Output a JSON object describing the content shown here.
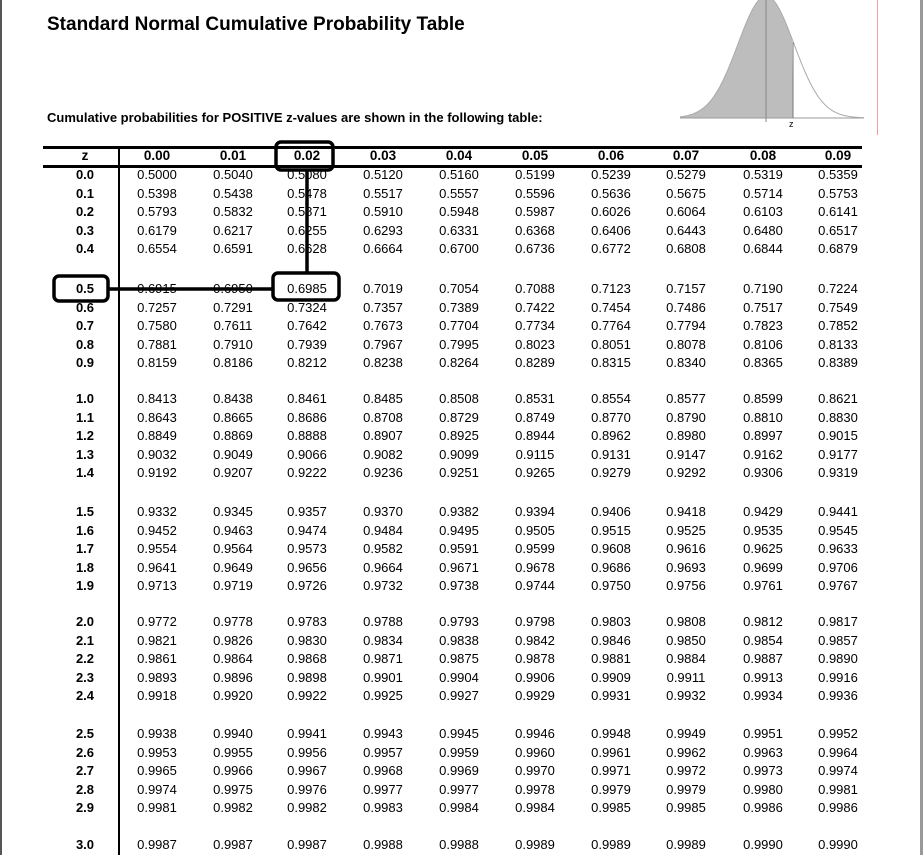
{
  "title": "Standard Normal Cumulative Probability Table",
  "subtitle": "Cumulative probabilities for POSITIVE z-values are shown in the following table:",
  "figure": {
    "axis_label": "z"
  },
  "table": {
    "headers": [
      "z",
      "0.00",
      "0.01",
      "0.02",
      "0.03",
      "0.04",
      "0.05",
      "0.06",
      "0.07",
      "0.08",
      "0.09"
    ],
    "groups": [
      [
        [
          "0.0",
          "0.5000",
          "0.5040",
          "0.5080",
          "0.5120",
          "0.5160",
          "0.5199",
          "0.5239",
          "0.5279",
          "0.5319",
          "0.5359"
        ],
        [
          "0.1",
          "0.5398",
          "0.5438",
          "0.5478",
          "0.5517",
          "0.5557",
          "0.5596",
          "0.5636",
          "0.5675",
          "0.5714",
          "0.5753"
        ],
        [
          "0.2",
          "0.5793",
          "0.5832",
          "0.5871",
          "0.5910",
          "0.5948",
          "0.5987",
          "0.6026",
          "0.6064",
          "0.6103",
          "0.6141"
        ],
        [
          "0.3",
          "0.6179",
          "0.6217",
          "0.6255",
          "0.6293",
          "0.6331",
          "0.6368",
          "0.6406",
          "0.6443",
          "0.6480",
          "0.6517"
        ],
        [
          "0.4",
          "0.6554",
          "0.6591",
          "0.6628",
          "0.6664",
          "0.6700",
          "0.6736",
          "0.6772",
          "0.6808",
          "0.6844",
          "0.6879"
        ]
      ],
      [
        [
          "0.5",
          "0.6915",
          "0.6950",
          "0.6985",
          "0.7019",
          "0.7054",
          "0.7088",
          "0.7123",
          "0.7157",
          "0.7190",
          "0.7224"
        ],
        [
          "0.6",
          "0.7257",
          "0.7291",
          "0.7324",
          "0.7357",
          "0.7389",
          "0.7422",
          "0.7454",
          "0.7486",
          "0.7517",
          "0.7549"
        ],
        [
          "0.7",
          "0.7580",
          "0.7611",
          "0.7642",
          "0.7673",
          "0.7704",
          "0.7734",
          "0.7764",
          "0.7794",
          "0.7823",
          "0.7852"
        ],
        [
          "0.8",
          "0.7881",
          "0.7910",
          "0.7939",
          "0.7967",
          "0.7995",
          "0.8023",
          "0.8051",
          "0.8078",
          "0.8106",
          "0.8133"
        ],
        [
          "0.9",
          "0.8159",
          "0.8186",
          "0.8212",
          "0.8238",
          "0.8264",
          "0.8289",
          "0.8315",
          "0.8340",
          "0.8365",
          "0.8389"
        ]
      ],
      [
        [
          "1.0",
          "0.8413",
          "0.8438",
          "0.8461",
          "0.8485",
          "0.8508",
          "0.8531",
          "0.8554",
          "0.8577",
          "0.8599",
          "0.8621"
        ],
        [
          "1.1",
          "0.8643",
          "0.8665",
          "0.8686",
          "0.8708",
          "0.8729",
          "0.8749",
          "0.8770",
          "0.8790",
          "0.8810",
          "0.8830"
        ],
        [
          "1.2",
          "0.8849",
          "0.8869",
          "0.8888",
          "0.8907",
          "0.8925",
          "0.8944",
          "0.8962",
          "0.8980",
          "0.8997",
          "0.9015"
        ],
        [
          "1.3",
          "0.9032",
          "0.9049",
          "0.9066",
          "0.9082",
          "0.9099",
          "0.9115",
          "0.9131",
          "0.9147",
          "0.9162",
          "0.9177"
        ],
        [
          "1.4",
          "0.9192",
          "0.9207",
          "0.9222",
          "0.9236",
          "0.9251",
          "0.9265",
          "0.9279",
          "0.9292",
          "0.9306",
          "0.9319"
        ]
      ],
      [
        [
          "1.5",
          "0.9332",
          "0.9345",
          "0.9357",
          "0.9370",
          "0.9382",
          "0.9394",
          "0.9406",
          "0.9418",
          "0.9429",
          "0.9441"
        ],
        [
          "1.6",
          "0.9452",
          "0.9463",
          "0.9474",
          "0.9484",
          "0.9495",
          "0.9505",
          "0.9515",
          "0.9525",
          "0.9535",
          "0.9545"
        ],
        [
          "1.7",
          "0.9554",
          "0.9564",
          "0.9573",
          "0.9582",
          "0.9591",
          "0.9599",
          "0.9608",
          "0.9616",
          "0.9625",
          "0.9633"
        ],
        [
          "1.8",
          "0.9641",
          "0.9649",
          "0.9656",
          "0.9664",
          "0.9671",
          "0.9678",
          "0.9686",
          "0.9693",
          "0.9699",
          "0.9706"
        ],
        [
          "1.9",
          "0.9713",
          "0.9719",
          "0.9726",
          "0.9732",
          "0.9738",
          "0.9744",
          "0.9750",
          "0.9756",
          "0.9761",
          "0.9767"
        ]
      ],
      [
        [
          "2.0",
          "0.9772",
          "0.9778",
          "0.9783",
          "0.9788",
          "0.9793",
          "0.9798",
          "0.9803",
          "0.9808",
          "0.9812",
          "0.9817"
        ],
        [
          "2.1",
          "0.9821",
          "0.9826",
          "0.9830",
          "0.9834",
          "0.9838",
          "0.9842",
          "0.9846",
          "0.9850",
          "0.9854",
          "0.9857"
        ],
        [
          "2.2",
          "0.9861",
          "0.9864",
          "0.9868",
          "0.9871",
          "0.9875",
          "0.9878",
          "0.9881",
          "0.9884",
          "0.9887",
          "0.9890"
        ],
        [
          "2.3",
          "0.9893",
          "0.9896",
          "0.9898",
          "0.9901",
          "0.9904",
          "0.9906",
          "0.9909",
          "0.9911",
          "0.9913",
          "0.9916"
        ],
        [
          "2.4",
          "0.9918",
          "0.9920",
          "0.9922",
          "0.9925",
          "0.9927",
          "0.9929",
          "0.9931",
          "0.9932",
          "0.9934",
          "0.9936"
        ]
      ],
      [
        [
          "2.5",
          "0.9938",
          "0.9940",
          "0.9941",
          "0.9943",
          "0.9945",
          "0.9946",
          "0.9948",
          "0.9949",
          "0.9951",
          "0.9952"
        ],
        [
          "2.6",
          "0.9953",
          "0.9955",
          "0.9956",
          "0.9957",
          "0.9959",
          "0.9960",
          "0.9961",
          "0.9962",
          "0.9963",
          "0.9964"
        ],
        [
          "2.7",
          "0.9965",
          "0.9966",
          "0.9967",
          "0.9968",
          "0.9969",
          "0.9970",
          "0.9971",
          "0.9972",
          "0.9973",
          "0.9974"
        ],
        [
          "2.8",
          "0.9974",
          "0.9975",
          "0.9976",
          "0.9977",
          "0.9977",
          "0.9978",
          "0.9979",
          "0.9979",
          "0.9980",
          "0.9981"
        ],
        [
          "2.9",
          "0.9981",
          "0.9982",
          "0.9982",
          "0.9983",
          "0.9984",
          "0.9984",
          "0.9985",
          "0.9985",
          "0.9986",
          "0.9986"
        ]
      ],
      [
        [
          "3.0",
          "0.9987",
          "0.9987",
          "0.9987",
          "0.9988",
          "0.9988",
          "0.9989",
          "0.9989",
          "0.9989",
          "0.9990",
          "0.9990"
        ]
      ]
    ]
  },
  "highlight": {
    "row_z": "0.5",
    "column": "0.02",
    "value": "0.6985"
  }
}
